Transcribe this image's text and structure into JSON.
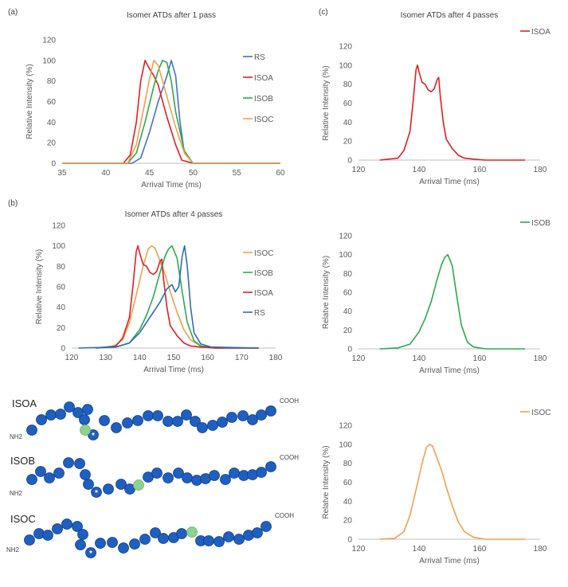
{
  "panel_labels": {
    "a": "(a)",
    "b": "(b)",
    "c": "(c)"
  },
  "colors": {
    "RS": "#4472c4",
    "ISOA": "#e02020",
    "ISOB": "#2ea84f",
    "ISOC": "#f0a050",
    "bead": "#1f5fbf",
    "bead_stroke": "#0f3e8a",
    "modified": "#8fd18f",
    "axis": "#bfbfbf",
    "text": "#404040"
  },
  "chart_data": [
    {
      "id": "a",
      "type": "line",
      "title": "Isomer ATDs after 1 pass",
      "xlabel": "Arrival Time (ms)",
      "ylabel": "Relative Intensity (%)",
      "xlim": [
        35,
        60
      ],
      "ylim": [
        0,
        120
      ],
      "xticks": [
        35,
        40,
        45,
        50,
        55,
        60
      ],
      "yticks": [
        0,
        20,
        40,
        60,
        80,
        100,
        120
      ],
      "legend": "right",
      "series": [
        {
          "name": "RS",
          "color": "#4472c4",
          "x": [
            35,
            43,
            44,
            45,
            46,
            46.5,
            47,
            47.5,
            48,
            48.5,
            49,
            50,
            60
          ],
          "y": [
            0,
            0,
            5,
            30,
            60,
            72,
            85,
            100,
            85,
            40,
            10,
            0,
            0
          ]
        },
        {
          "name": "ISOA",
          "color": "#e02020",
          "x": [
            35,
            42,
            42.8,
            43.5,
            44,
            44.5,
            45,
            45.5,
            46,
            47,
            48,
            48.7,
            50,
            60
          ],
          "y": [
            0,
            0,
            8,
            40,
            80,
            100,
            92,
            85,
            76,
            45,
            18,
            3,
            0,
            0
          ]
        },
        {
          "name": "ISOB",
          "color": "#2ea84f",
          "x": [
            35,
            42.5,
            43.5,
            44.5,
            45.5,
            46,
            46.5,
            47,
            47.5,
            48,
            49,
            50,
            60
          ],
          "y": [
            0,
            0,
            10,
            40,
            75,
            90,
            100,
            98,
            80,
            50,
            12,
            0,
            0
          ]
        },
        {
          "name": "ISOC",
          "color": "#f0a050",
          "x": [
            35,
            42.5,
            43.5,
            44.5,
            45,
            45.5,
            46,
            47,
            48,
            49,
            50,
            60
          ],
          "y": [
            0,
            0,
            18,
            60,
            82,
            100,
            95,
            65,
            35,
            10,
            0,
            0
          ]
        }
      ]
    },
    {
      "id": "b",
      "type": "line",
      "title": "Isomer ATDs after 4 passes",
      "xlabel": "Arrival Time (ms)",
      "ylabel": "Relative Intensity (%)",
      "xlim": [
        120,
        180
      ],
      "ylim": [
        0,
        120
      ],
      "xticks": [
        120,
        130,
        140,
        150,
        160,
        170,
        180
      ],
      "yticks": [
        0,
        20,
        40,
        60,
        80,
        100,
        120
      ],
      "legend": "right",
      "series": [
        {
          "name": "ISOC",
          "color": "#f0a050",
          "x": [
            127,
            132,
            135,
            137,
            139,
            141,
            142.5,
            143.5,
            144.5,
            146,
            147.5,
            149,
            151,
            153,
            155,
            158,
            162,
            175
          ],
          "y": [
            0,
            1,
            8,
            25,
            52,
            80,
            97,
            100,
            98,
            85,
            72,
            55,
            35,
            18,
            8,
            2,
            0,
            0
          ]
        },
        {
          "name": "ISOB",
          "color": "#2ea84f",
          "x": [
            127,
            133,
            137,
            140,
            142,
            144,
            146,
            147.5,
            148.5,
            149.5,
            151,
            152.5,
            154,
            156,
            158,
            162,
            175
          ],
          "y": [
            0,
            1,
            5,
            18,
            32,
            50,
            74,
            90,
            97,
            100,
            88,
            55,
            25,
            7,
            2,
            0,
            0
          ]
        },
        {
          "name": "ISOA",
          "color": "#e02020",
          "x": [
            127,
            133,
            135,
            136,
            137,
            138,
            139,
            139.5,
            140,
            141,
            142,
            143,
            144,
            145,
            146,
            146.5,
            147,
            148,
            149,
            151,
            153,
            155,
            158,
            162,
            175
          ],
          "y": [
            0,
            2,
            10,
            20,
            30,
            60,
            95,
            100,
            93,
            82,
            80,
            74,
            72,
            75,
            85,
            87,
            68,
            40,
            22,
            12,
            5,
            2,
            1,
            0,
            0
          ]
        },
        {
          "name": "RS",
          "color": "#2e6db4",
          "x": [
            122,
            133,
            137,
            140,
            143,
            146,
            148,
            149.5,
            150.5,
            151.5,
            152.5,
            153.2,
            154,
            155,
            156,
            158,
            161,
            175
          ],
          "y": [
            0,
            1,
            5,
            15,
            30,
            45,
            58,
            62,
            55,
            60,
            90,
            100,
            80,
            40,
            15,
            4,
            1,
            0
          ]
        }
      ]
    },
    {
      "id": "c1",
      "type": "line",
      "title": "Isomer ATDs after 4 passes",
      "xlabel": "Arrival Time (ms)",
      "ylabel": "Relative Intensity (%)",
      "xlim": [
        120,
        180
      ],
      "ylim": [
        0,
        120
      ],
      "xticks": [
        120,
        140,
        160,
        180
      ],
      "yticks": [
        0,
        20,
        40,
        60,
        80,
        100,
        120
      ],
      "legend": "top-right",
      "series": [
        {
          "name": "ISOA",
          "color": "#e02020",
          "x": [
            127,
            133,
            135,
            136,
            137,
            138,
            139,
            139.5,
            140,
            141,
            142,
            143,
            144,
            145,
            146,
            146.5,
            147,
            148,
            149,
            151,
            153,
            155,
            158,
            162,
            175
          ],
          "y": [
            0,
            2,
            10,
            20,
            30,
            60,
            95,
            100,
            93,
            82,
            80,
            74,
            72,
            75,
            85,
            87,
            68,
            40,
            22,
            12,
            5,
            2,
            1,
            0,
            0
          ]
        }
      ]
    },
    {
      "id": "c2",
      "type": "line",
      "title": "",
      "xlabel": "Arrival Time (ms)",
      "ylabel": "Relatve Intensity (%)",
      "xlim": [
        120,
        180
      ],
      "ylim": [
        0,
        120
      ],
      "xticks": [
        120,
        140,
        160,
        180
      ],
      "yticks": [
        0,
        20,
        40,
        60,
        80,
        100,
        120
      ],
      "legend": "top-right",
      "series": [
        {
          "name": "ISOB",
          "color": "#2ea84f",
          "x": [
            127,
            133,
            137,
            140,
            142,
            144,
            146,
            147.5,
            148.5,
            149.5,
            151,
            152.5,
            154,
            156,
            158,
            162,
            175
          ],
          "y": [
            0,
            1,
            5,
            18,
            32,
            50,
            74,
            90,
            97,
            100,
            88,
            55,
            25,
            7,
            2,
            0,
            0
          ]
        }
      ]
    },
    {
      "id": "c3",
      "type": "line",
      "title": "",
      "xlabel": "Arrival Time (ms)",
      "ylabel": "Relatve Intensity (%)",
      "xlim": [
        120,
        180
      ],
      "ylim": [
        0,
        120
      ],
      "xticks": [
        120,
        140,
        160,
        180
      ],
      "yticks": [
        0,
        20,
        40,
        60,
        80,
        100,
        120
      ],
      "legend": "top-right",
      "series": [
        {
          "name": "ISOC",
          "color": "#f0a050",
          "x": [
            127,
            132,
            135,
            137,
            139,
            141,
            142.5,
            143.5,
            144.5,
            146,
            147.5,
            149,
            151,
            153,
            155,
            158,
            162,
            175
          ],
          "y": [
            0,
            1,
            8,
            25,
            52,
            80,
            97,
            100,
            98,
            85,
            72,
            55,
            35,
            18,
            8,
            2,
            0,
            0
          ]
        }
      ]
    }
  ],
  "peptides": [
    {
      "name": "ISOA",
      "n_term": "NH2",
      "c_term": "COOH"
    },
    {
      "name": "ISOB",
      "n_term": "NH2",
      "c_term": "COOH"
    },
    {
      "name": "ISOC",
      "n_term": "NH2",
      "c_term": "COOH"
    }
  ],
  "modification_mark": "*"
}
